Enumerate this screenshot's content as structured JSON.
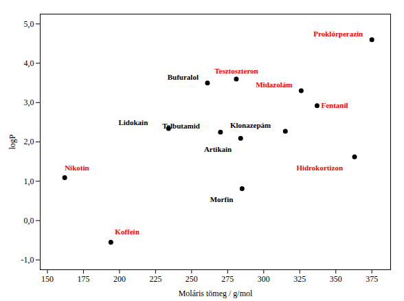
{
  "chart_data": {
    "type": "scatter",
    "x": [
      162,
      194,
      234,
      261,
      281,
      270,
      284,
      285,
      315,
      326,
      337,
      363,
      375
    ],
    "values": [
      1.09,
      -0.55,
      2.34,
      3.5,
      3.6,
      2.25,
      2.09,
      0.81,
      2.27,
      3.3,
      2.92,
      1.62,
      4.6
    ],
    "color": "black",
    "xlabel": "Moláris tömeg / g/mol",
    "ylabel": "logP",
    "xlim": [
      145,
      388
    ],
    "ylim": [
      -1.25,
      5.25
    ],
    "xticks": [
      150,
      175,
      200,
      225,
      250,
      275,
      300,
      325,
      350,
      375
    ],
    "yticks": [
      {
        "value": -1.0,
        "label": "-1,0"
      },
      {
        "value": 0.0,
        "label": "0,0"
      },
      {
        "value": 1.0,
        "label": "1,0"
      },
      {
        "value": 2.0,
        "label": "2,0"
      },
      {
        "value": 3.0,
        "label": "3,0"
      },
      {
        "value": 4.0,
        "label": "4,0"
      },
      {
        "value": 5.0,
        "label": "5,0"
      }
    ],
    "annotations": [
      {
        "text": "Nikotin",
        "x": 162,
        "y": 1.09,
        "color": "red"
      },
      {
        "text": "Koffein",
        "x": 194,
        "y": -0.55,
        "color": "red"
      },
      {
        "text": "Lidokain",
        "x": 234,
        "y": 2.34,
        "color": "black"
      },
      {
        "text": "Bufuralol",
        "x": 261,
        "y": 3.5,
        "color": "black"
      },
      {
        "text": "Tesztoszteron",
        "x": 281,
        "y": 3.6,
        "color": "red"
      },
      {
        "text": "Tolbutamid",
        "x": 270,
        "y": 2.25,
        "color": "black"
      },
      {
        "text": "Artikain",
        "x": 284,
        "y": 2.09,
        "color": "black"
      },
      {
        "text": "Morfin",
        "x": 285,
        "y": 0.81,
        "color": "black"
      },
      {
        "text": "Klonazepám",
        "x": 315,
        "y": 2.27,
        "color": "black"
      },
      {
        "text": "Midazolám",
        "x": 326,
        "y": 3.3,
        "color": "red"
      },
      {
        "text": "Fentanil",
        "x": 337,
        "y": 2.92,
        "color": "red"
      },
      {
        "text": "Hidrokortizon",
        "x": 363,
        "y": 1.62,
        "color": "red"
      },
      {
        "text": "Proklórperazin",
        "x": 375,
        "y": 4.6,
        "color": "red"
      }
    ]
  }
}
